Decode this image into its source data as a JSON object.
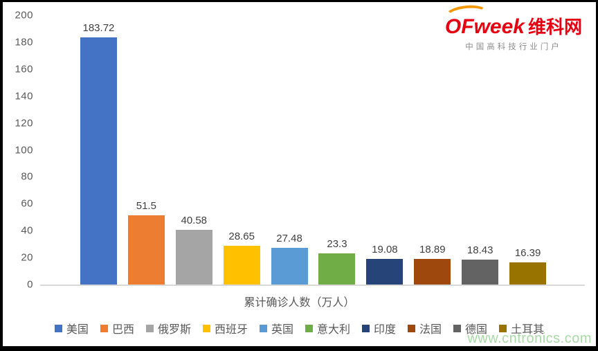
{
  "logo": {
    "brand": "OFweek",
    "brand_cn": "维科网",
    "tagline": "中国高科技行业门户",
    "brand_color": "#e50012",
    "arc_color": "#f39800"
  },
  "watermark": {
    "text": "www.cntronics.com",
    "color": "#9ed69b"
  },
  "chart_data": {
    "type": "bar",
    "title": "",
    "xlabel": "累计确诊人数（万人）",
    "ylabel": "",
    "ylim": [
      0,
      200
    ],
    "yticks": [
      0,
      20,
      40,
      60,
      80,
      100,
      120,
      140,
      160,
      180,
      200
    ],
    "grid": false,
    "legend_position": "bottom",
    "categories": [
      "美国",
      "巴西",
      "俄罗斯",
      "西班牙",
      "英国",
      "意大利",
      "印度",
      "法国",
      "德国",
      "土耳其"
    ],
    "values": [
      183.72,
      51.5,
      40.58,
      28.65,
      27.48,
      23.3,
      19.08,
      18.89,
      18.43,
      16.39
    ],
    "value_labels": [
      "183.72",
      "51.5",
      "40.58",
      "28.65",
      "27.48",
      "23.3",
      "19.08",
      "18.89",
      "18.43",
      "16.39"
    ],
    "colors": [
      "#4472c4",
      "#ed7d31",
      "#a5a5a5",
      "#ffc000",
      "#5b9bd5",
      "#70ad47",
      "#264478",
      "#9e480e",
      "#636363",
      "#997300"
    ],
    "axis_line_color": "#d9d9d9"
  }
}
